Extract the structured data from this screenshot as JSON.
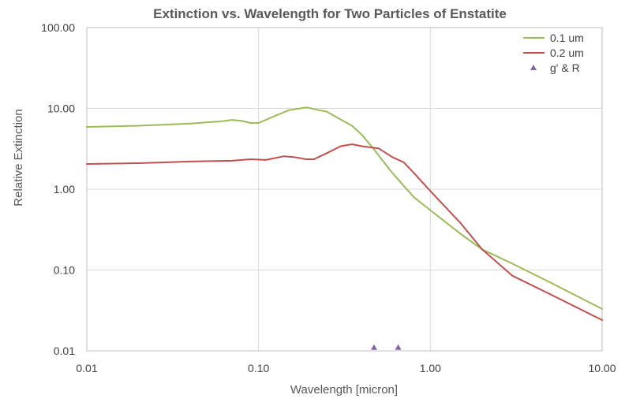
{
  "chart_data": {
    "type": "line",
    "title": "Extinction vs. Wavelength for Two Particles of Enstatite",
    "xlabel": "Wavelength [micron]",
    "ylabel": "Relative Extinction",
    "x_scale": "log",
    "y_scale": "log",
    "xlim": [
      0.01,
      10
    ],
    "ylim": [
      0.01,
      100
    ],
    "x_ticks": [
      0.01,
      0.1,
      1,
      10
    ],
    "x_tick_labels": [
      "0.01",
      "0.10",
      "1.00",
      "10.00"
    ],
    "y_ticks": [
      0.01,
      0.1,
      1,
      10,
      100
    ],
    "y_tick_labels": [
      "0.01",
      "0.10",
      "1.00",
      "10.00",
      "100.00"
    ],
    "grid": true,
    "legend_position": "top-right",
    "series": [
      {
        "name": "0.1 um",
        "color": "#9bbb59",
        "style": "line",
        "x": [
          0.01,
          0.02,
          0.04,
          0.06,
          0.07,
          0.08,
          0.09,
          0.1,
          0.12,
          0.15,
          0.19,
          0.22,
          0.25,
          0.3,
          0.35,
          0.4,
          0.47,
          0.6,
          0.8,
          1.0,
          1.5,
          2.0,
          3.0,
          5.0,
          10.0
        ],
        "values": [
          5.9,
          6.1,
          6.5,
          6.9,
          7.2,
          7.0,
          6.6,
          6.6,
          7.8,
          9.5,
          10.3,
          9.6,
          9.1,
          7.3,
          6.1,
          4.7,
          3.1,
          1.6,
          0.8,
          0.55,
          0.28,
          0.18,
          0.12,
          0.07,
          0.033
        ]
      },
      {
        "name": "0.2 um",
        "color": "#c0504d",
        "style": "line",
        "x": [
          0.01,
          0.02,
          0.04,
          0.07,
          0.09,
          0.11,
          0.14,
          0.16,
          0.19,
          0.21,
          0.25,
          0.3,
          0.35,
          0.4,
          0.5,
          0.6,
          0.7,
          0.8,
          1.0,
          1.5,
          2.0,
          3.0,
          5.0,
          10.0
        ],
        "values": [
          2.05,
          2.1,
          2.2,
          2.25,
          2.35,
          2.3,
          2.55,
          2.5,
          2.35,
          2.35,
          2.8,
          3.4,
          3.6,
          3.4,
          3.2,
          2.5,
          2.15,
          1.6,
          0.95,
          0.38,
          0.18,
          0.085,
          0.05,
          0.024
        ]
      },
      {
        "name": "g' & R",
        "color": "#8064a2",
        "style": "marker",
        "x": [
          0.47,
          0.65
        ],
        "values": [
          0.011,
          0.011
        ]
      }
    ]
  }
}
